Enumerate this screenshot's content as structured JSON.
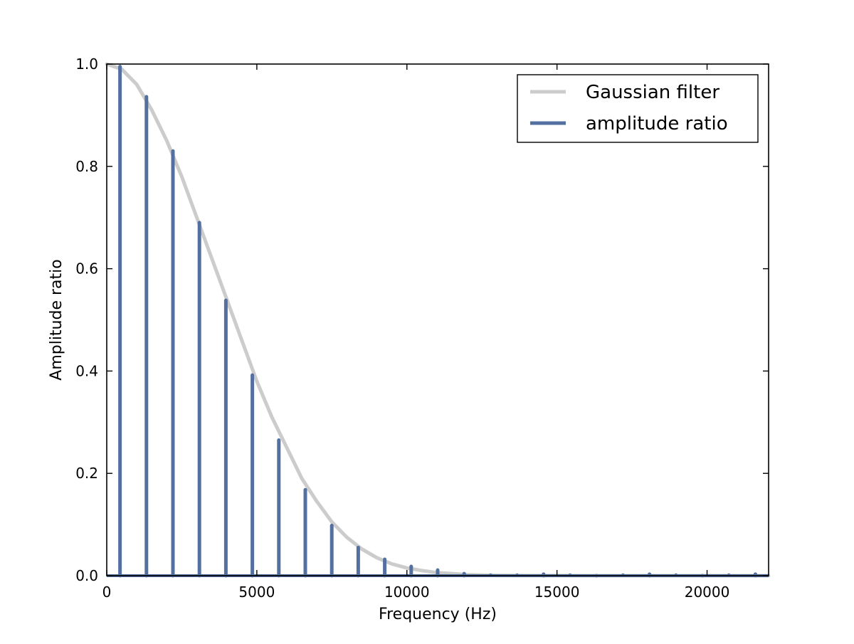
{
  "chart_data": {
    "type": "line",
    "title": "",
    "xlabel": "Frequency (Hz)",
    "ylabel": "Amplitude ratio",
    "xlim": [
      0,
      22050
    ],
    "ylim": [
      0.0,
      1.0
    ],
    "xticks": [
      0,
      5000,
      10000,
      15000,
      20000
    ],
    "xtick_labels": [
      "0",
      "5000",
      "10000",
      "15000",
      "20000"
    ],
    "yticks": [
      0.0,
      0.2,
      0.4,
      0.6,
      0.8,
      1.0
    ],
    "ytick_labels": [
      "0.0",
      "0.2",
      "0.4",
      "0.6",
      "0.8",
      "1.0"
    ],
    "grid": false,
    "legend": {
      "position": "top-right",
      "entries": [
        {
          "label": "Gaussian filter",
          "color": "#cccccc"
        },
        {
          "label": "amplitude ratio",
          "color": "#5470a0"
        }
      ]
    },
    "series": [
      {
        "name": "Gaussian filter",
        "kind": "line",
        "color": "#cccccc",
        "x": [
          0,
          500,
          1000,
          1500,
          2000,
          2500,
          3000,
          3500,
          4000,
          4500,
          5000,
          5500,
          6000,
          6500,
          7000,
          7500,
          8000,
          8500,
          9000,
          9500,
          10000,
          10500,
          11000,
          11500,
          12000,
          12500,
          13000,
          14000,
          15000,
          16000,
          17000,
          18000,
          19000,
          20000,
          21000,
          22050
        ],
        "y": [
          1.0,
          0.99,
          0.96,
          0.91,
          0.85,
          0.78,
          0.7,
          0.62,
          0.54,
          0.46,
          0.38,
          0.31,
          0.25,
          0.19,
          0.145,
          0.105,
          0.075,
          0.052,
          0.035,
          0.023,
          0.015,
          0.01,
          0.006,
          0.004,
          0.002,
          0.001,
          0.0005,
          0.0002,
          0.0001,
          0.0,
          0.0,
          0.0,
          0.0,
          0.0,
          0.0,
          0.0
        ]
      },
      {
        "name": "amplitude ratio",
        "kind": "stem",
        "color": "#5470a0",
        "x": [
          441,
          1323,
          2205,
          3087,
          3969,
          4851,
          5733,
          6615,
          7497,
          8379,
          9261,
          10143,
          11025,
          11907,
          12789,
          13671,
          14553,
          15435,
          16317,
          17199,
          18081,
          18963,
          19845,
          20727,
          21609
        ],
        "y": [
          0.995,
          0.936,
          0.83,
          0.69,
          0.538,
          0.392,
          0.265,
          0.168,
          0.098,
          0.055,
          0.032,
          0.018,
          0.011,
          0.004,
          0.001,
          0.001,
          0.003,
          0.001,
          0.0,
          0.001,
          0.003,
          0.001,
          0.0,
          0.001,
          0.003
        ]
      }
    ]
  }
}
